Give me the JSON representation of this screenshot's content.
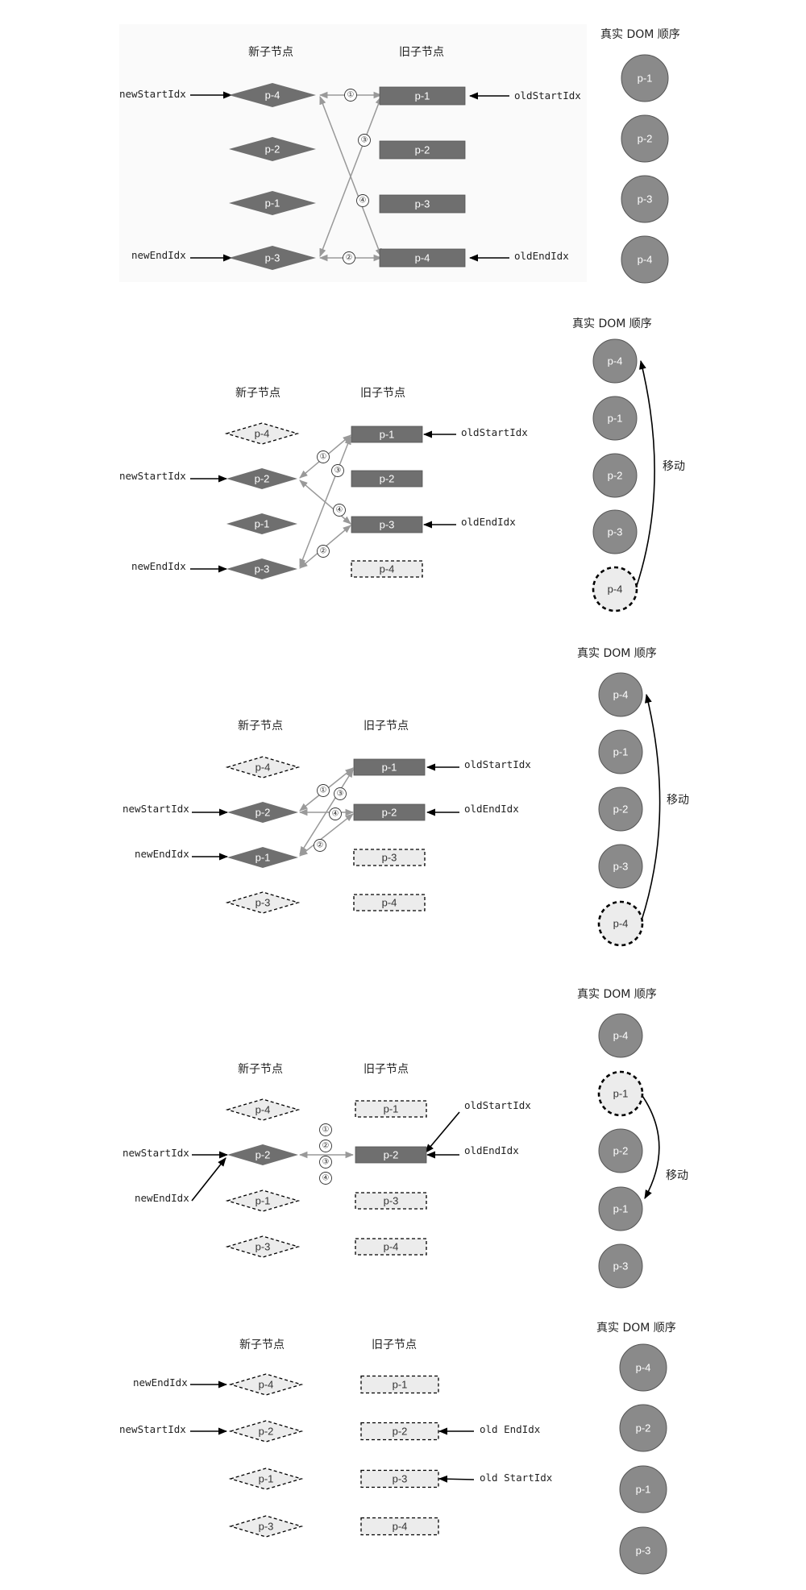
{
  "headers": {
    "new": "新子节点",
    "old": "旧子节点",
    "dom": "真实 DOM 顺序",
    "dom5": "真实  DOM  顺序"
  },
  "pointers": {
    "newStart": "newStartIdx",
    "newEnd": "newEndIdx",
    "oldStart": "oldStartIdx",
    "oldEnd": "oldEndIdx",
    "oldStartSpaced": "old StartIdx",
    "oldEndSpaced": "old EndIdx"
  },
  "move_label": "移动",
  "circled": [
    "①",
    "②",
    "③",
    "④"
  ],
  "colors": {
    "filled": "#6f6f6f",
    "circle": "#8a8a8a",
    "dashed_fill": "#ececec",
    "arrow": "#999999",
    "line": "#000000"
  },
  "panels": [
    {
      "new_nodes": [
        {
          "label": "p-4",
          "state": "active"
        },
        {
          "label": "p-2",
          "state": "active"
        },
        {
          "label": "p-1",
          "state": "active"
        },
        {
          "label": "p-3",
          "state": "active"
        }
      ],
      "old_nodes": [
        {
          "label": "p-1",
          "state": "active"
        },
        {
          "label": "p-2",
          "state": "active"
        },
        {
          "label": "p-3",
          "state": "active"
        },
        {
          "label": "p-4",
          "state": "active"
        }
      ],
      "dom_nodes": [
        {
          "label": "p-1",
          "state": "normal"
        },
        {
          "label": "p-2",
          "state": "normal"
        },
        {
          "label": "p-3",
          "state": "normal"
        },
        {
          "label": "p-4",
          "state": "normal"
        }
      ]
    },
    {
      "new_nodes": [
        {
          "label": "p-4",
          "state": "processed"
        },
        {
          "label": "p-2",
          "state": "active"
        },
        {
          "label": "p-1",
          "state": "active"
        },
        {
          "label": "p-3",
          "state": "active"
        }
      ],
      "old_nodes": [
        {
          "label": "p-1",
          "state": "active"
        },
        {
          "label": "p-2",
          "state": "active"
        },
        {
          "label": "p-3",
          "state": "active"
        },
        {
          "label": "p-4",
          "state": "processed"
        }
      ],
      "dom_nodes": [
        {
          "label": "p-4",
          "state": "normal"
        },
        {
          "label": "p-1",
          "state": "normal"
        },
        {
          "label": "p-2",
          "state": "normal"
        },
        {
          "label": "p-3",
          "state": "normal"
        },
        {
          "label": "p-4",
          "state": "moved"
        }
      ]
    },
    {
      "new_nodes": [
        {
          "label": "p-4",
          "state": "processed"
        },
        {
          "label": "p-2",
          "state": "active"
        },
        {
          "label": "p-1",
          "state": "active"
        },
        {
          "label": "p-3",
          "state": "processed"
        }
      ],
      "old_nodes": [
        {
          "label": "p-1",
          "state": "active"
        },
        {
          "label": "p-2",
          "state": "active"
        },
        {
          "label": "p-3",
          "state": "processed"
        },
        {
          "label": "p-4",
          "state": "processed"
        }
      ],
      "dom_nodes": [
        {
          "label": "p-4",
          "state": "normal"
        },
        {
          "label": "p-1",
          "state": "normal"
        },
        {
          "label": "p-2",
          "state": "normal"
        },
        {
          "label": "p-3",
          "state": "normal"
        },
        {
          "label": "p-4",
          "state": "moved"
        }
      ]
    },
    {
      "new_nodes": [
        {
          "label": "p-4",
          "state": "processed"
        },
        {
          "label": "p-2",
          "state": "active"
        },
        {
          "label": "p-1",
          "state": "processed"
        },
        {
          "label": "p-3",
          "state": "processed"
        }
      ],
      "old_nodes": [
        {
          "label": "p-1",
          "state": "processed"
        },
        {
          "label": "p-2",
          "state": "active"
        },
        {
          "label": "p-3",
          "state": "processed"
        },
        {
          "label": "p-4",
          "state": "processed"
        }
      ],
      "dom_nodes": [
        {
          "label": "p-4",
          "state": "normal"
        },
        {
          "label": "p-1",
          "state": "moved"
        },
        {
          "label": "p-2",
          "state": "normal"
        },
        {
          "label": "p-1",
          "state": "normal"
        },
        {
          "label": "p-3",
          "state": "normal"
        }
      ]
    },
    {
      "new_nodes": [
        {
          "label": "p-4",
          "state": "processed"
        },
        {
          "label": "p-2",
          "state": "processed"
        },
        {
          "label": "p-1",
          "state": "processed"
        },
        {
          "label": "p-3",
          "state": "processed"
        }
      ],
      "old_nodes": [
        {
          "label": "p-1",
          "state": "processed"
        },
        {
          "label": "p-2",
          "state": "processed"
        },
        {
          "label": "p-3",
          "state": "processed"
        },
        {
          "label": "p-4",
          "state": "processed"
        }
      ],
      "dom_nodes": [
        {
          "label": "p-4",
          "state": "normal"
        },
        {
          "label": "p-2",
          "state": "normal"
        },
        {
          "label": "p-1",
          "state": "normal"
        },
        {
          "label": "p-3",
          "state": "normal"
        }
      ]
    }
  ]
}
